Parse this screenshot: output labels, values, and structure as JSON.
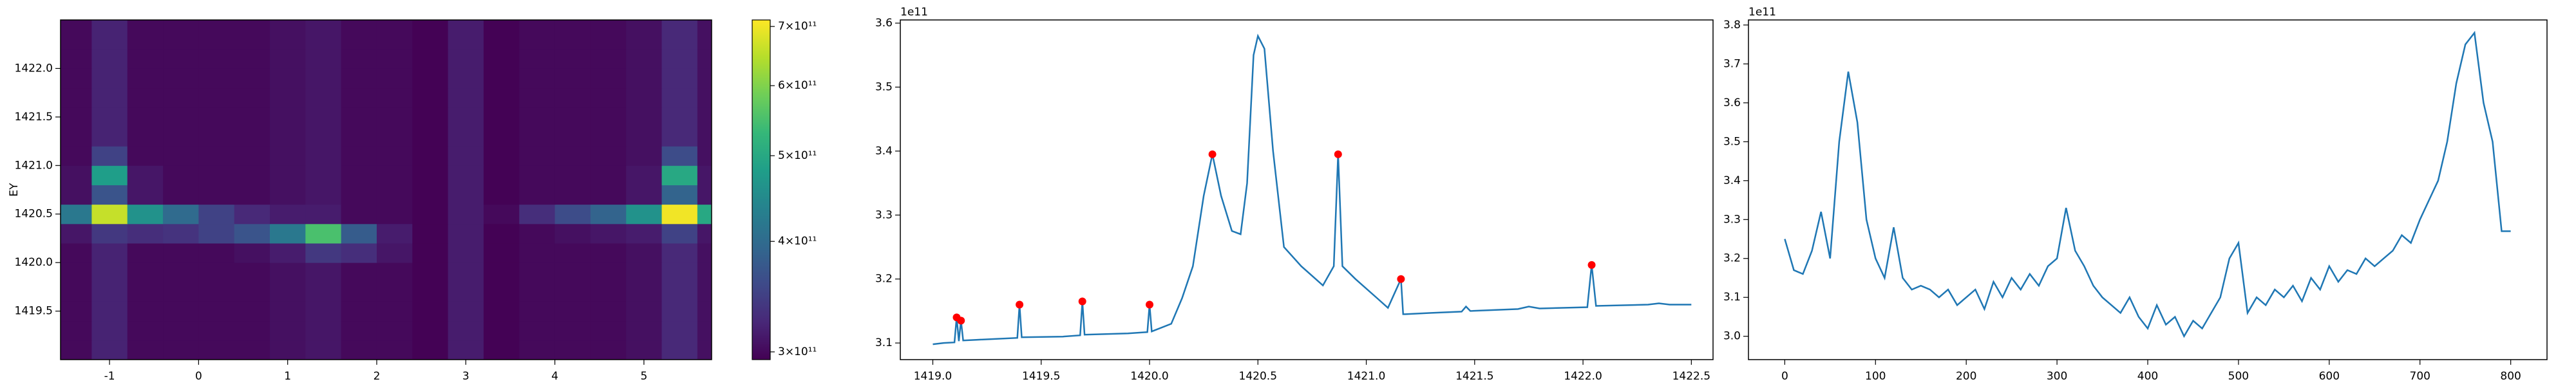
{
  "chart_data": [
    {
      "type": "heatmap",
      "ylabel": "EY",
      "x": [
        -1.4,
        -1.0,
        -0.6,
        -0.2,
        0.2,
        0.6,
        1.0,
        1.4,
        1.8,
        2.2,
        2.6,
        3.0,
        3.4,
        3.8,
        4.2,
        4.6,
        5.0,
        5.4,
        5.8
      ],
      "y": [
        1419.1,
        1419.3,
        1419.5,
        1419.7,
        1419.9,
        1420.1,
        1420.3,
        1420.5,
        1420.7,
        1420.9,
        1421.1,
        1421.3,
        1421.5,
        1421.7,
        1421.9,
        1422.1,
        1422.3,
        1422.5
      ],
      "z": [
        [
          300000000000.0,
          320000000000.0,
          300000000000.0,
          300000000000.0,
          300000000000.0,
          300000000000.0,
          305000000000.0,
          310000000000.0,
          300000000000.0,
          300000000000.0,
          295000000000.0,
          315000000000.0,
          295000000000.0,
          300000000000.0,
          300000000000.0,
          300000000000.0,
          305000000000.0,
          325000000000.0,
          305000000000.0
        ],
        [
          300000000000.0,
          320000000000.0,
          300000000000.0,
          300000000000.0,
          300000000000.0,
          300000000000.0,
          305000000000.0,
          310000000000.0,
          300000000000.0,
          300000000000.0,
          295000000000.0,
          315000000000.0,
          295000000000.0,
          300000000000.0,
          300000000000.0,
          300000000000.0,
          305000000000.0,
          325000000000.0,
          305000000000.0
        ],
        [
          300000000000.0,
          320000000000.0,
          300000000000.0,
          300000000000.0,
          300000000000.0,
          300000000000.0,
          305000000000.0,
          310000000000.0,
          300000000000.0,
          300000000000.0,
          295000000000.0,
          315000000000.0,
          295000000000.0,
          300000000000.0,
          300000000000.0,
          300000000000.0,
          305000000000.0,
          325000000000.0,
          305000000000.0
        ],
        [
          300000000000.0,
          320000000000.0,
          300000000000.0,
          300000000000.0,
          300000000000.0,
          300000000000.0,
          305000000000.0,
          310000000000.0,
          300000000000.0,
          300000000000.0,
          295000000000.0,
          315000000000.0,
          295000000000.0,
          300000000000.0,
          300000000000.0,
          300000000000.0,
          305000000000.0,
          325000000000.0,
          305000000000.0
        ],
        [
          300000000000.0,
          320000000000.0,
          300000000000.0,
          300000000000.0,
          300000000000.0,
          300000000000.0,
          305000000000.0,
          310000000000.0,
          300000000000.0,
          300000000000.0,
          295000000000.0,
          315000000000.0,
          295000000000.0,
          300000000000.0,
          300000000000.0,
          300000000000.0,
          305000000000.0,
          325000000000.0,
          305000000000.0
        ],
        [
          300000000000.0,
          320000000000.0,
          300000000000.0,
          300000000000.0,
          300000000000.0,
          305000000000.0,
          315000000000.0,
          340000000000.0,
          330000000000.0,
          310000000000.0,
          295000000000.0,
          315000000000.0,
          295000000000.0,
          300000000000.0,
          300000000000.0,
          300000000000.0,
          305000000000.0,
          325000000000.0,
          305000000000.0
        ],
        [
          310000000000.0,
          340000000000.0,
          330000000000.0,
          335000000000.0,
          350000000000.0,
          370000000000.0,
          420000000000.0,
          550000000000.0,
          380000000000.0,
          315000000000.0,
          295000000000.0,
          315000000000.0,
          295000000000.0,
          300000000000.0,
          305000000000.0,
          310000000000.0,
          315000000000.0,
          350000000000.0,
          310000000000.0
        ],
        [
          420000000000.0,
          660000000000.0,
          460000000000.0,
          400000000000.0,
          350000000000.0,
          325000000000.0,
          315000000000.0,
          315000000000.0,
          300000000000.0,
          300000000000.0,
          295000000000.0,
          315000000000.0,
          300000000000.0,
          330000000000.0,
          360000000000.0,
          390000000000.0,
          460000000000.0,
          700000000000.0,
          500000000000.0
        ],
        [
          305000000000.0,
          370000000000.0,
          310000000000.0,
          300000000000.0,
          300000000000.0,
          300000000000.0,
          305000000000.0,
          310000000000.0,
          300000000000.0,
          300000000000.0,
          295000000000.0,
          315000000000.0,
          295000000000.0,
          300000000000.0,
          300000000000.0,
          300000000000.0,
          310000000000.0,
          390000000000.0,
          310000000000.0
        ],
        [
          305000000000.0,
          480000000000.0,
          310000000000.0,
          300000000000.0,
          300000000000.0,
          300000000000.0,
          305000000000.0,
          310000000000.0,
          300000000000.0,
          300000000000.0,
          295000000000.0,
          315000000000.0,
          295000000000.0,
          300000000000.0,
          300000000000.0,
          300000000000.0,
          310000000000.0,
          500000000000.0,
          310000000000.0
        ],
        [
          300000000000.0,
          350000000000.0,
          300000000000.0,
          300000000000.0,
          300000000000.0,
          300000000000.0,
          305000000000.0,
          310000000000.0,
          300000000000.0,
          300000000000.0,
          295000000000.0,
          315000000000.0,
          295000000000.0,
          300000000000.0,
          300000000000.0,
          300000000000.0,
          305000000000.0,
          360000000000.0,
          305000000000.0
        ],
        [
          300000000000.0,
          320000000000.0,
          300000000000.0,
          300000000000.0,
          300000000000.0,
          300000000000.0,
          305000000000.0,
          310000000000.0,
          300000000000.0,
          300000000000.0,
          295000000000.0,
          315000000000.0,
          295000000000.0,
          300000000000.0,
          300000000000.0,
          300000000000.0,
          305000000000.0,
          325000000000.0,
          305000000000.0
        ],
        [
          300000000000.0,
          320000000000.0,
          300000000000.0,
          300000000000.0,
          300000000000.0,
          300000000000.0,
          305000000000.0,
          310000000000.0,
          300000000000.0,
          300000000000.0,
          295000000000.0,
          315000000000.0,
          295000000000.0,
          300000000000.0,
          300000000000.0,
          300000000000.0,
          305000000000.0,
          325000000000.0,
          305000000000.0
        ],
        [
          300000000000.0,
          320000000000.0,
          300000000000.0,
          300000000000.0,
          300000000000.0,
          300000000000.0,
          305000000000.0,
          310000000000.0,
          300000000000.0,
          300000000000.0,
          295000000000.0,
          315000000000.0,
          295000000000.0,
          300000000000.0,
          300000000000.0,
          300000000000.0,
          305000000000.0,
          325000000000.0,
          305000000000.0
        ],
        [
          300000000000.0,
          320000000000.0,
          300000000000.0,
          300000000000.0,
          300000000000.0,
          300000000000.0,
          305000000000.0,
          310000000000.0,
          300000000000.0,
          300000000000.0,
          295000000000.0,
          315000000000.0,
          295000000000.0,
          300000000000.0,
          300000000000.0,
          300000000000.0,
          305000000000.0,
          325000000000.0,
          305000000000.0
        ],
        [
          300000000000.0,
          320000000000.0,
          300000000000.0,
          300000000000.0,
          300000000000.0,
          300000000000.0,
          305000000000.0,
          310000000000.0,
          300000000000.0,
          300000000000.0,
          295000000000.0,
          315000000000.0,
          295000000000.0,
          300000000000.0,
          300000000000.0,
          300000000000.0,
          305000000000.0,
          325000000000.0,
          305000000000.0
        ],
        [
          300000000000.0,
          320000000000.0,
          300000000000.0,
          300000000000.0,
          300000000000.0,
          300000000000.0,
          305000000000.0,
          310000000000.0,
          300000000000.0,
          300000000000.0,
          295000000000.0,
          315000000000.0,
          295000000000.0,
          300000000000.0,
          300000000000.0,
          300000000000.0,
          305000000000.0,
          325000000000.0,
          305000000000.0
        ],
        [
          300000000000.0,
          320000000000.0,
          300000000000.0,
          300000000000.0,
          300000000000.0,
          300000000000.0,
          305000000000.0,
          310000000000.0,
          300000000000.0,
          300000000000.0,
          295000000000.0,
          315000000000.0,
          295000000000.0,
          300000000000.0,
          300000000000.0,
          300000000000.0,
          305000000000.0,
          325000000000.0,
          305000000000.0
        ]
      ],
      "xlim": [
        -1.55,
        5.76
      ],
      "ylim": [
        1419.0,
        1422.5
      ],
      "xticks": [
        -1,
        0,
        1,
        2,
        3,
        4,
        5
      ],
      "yticks": [
        1419.5,
        {
          "value": 1420,
          "label": "1420.0"
        },
        1420.5,
        {
          "value": 1421,
          "label": "1421.0"
        },
        1421.5,
        {
          "value": 1422,
          "label": "1422.0"
        }
      ],
      "colorbar": {
        "colormap": "viridis",
        "log": true,
        "lim": [
          294000000000.0,
          712000000000.0
        ],
        "ticks": [
          {
            "value": 300000000000.0,
            "label": "3×10¹¹"
          },
          {
            "value": 400000000000.0,
            "label": "4×10¹¹"
          },
          {
            "value": 500000000000.0,
            "label": "5×10¹¹"
          },
          {
            "value": 600000000000.0,
            "label": "6×10¹¹"
          },
          {
            "value": 700000000000.0,
            "label": "7×10¹¹"
          }
        ]
      }
    },
    {
      "type": "line",
      "offset_label": "1e11",
      "color": "#1f77b4",
      "x": [
        1419.0,
        1419.05,
        1419.1,
        1419.11,
        1419.12,
        1419.13,
        1419.14,
        1419.2,
        1419.39,
        1419.4,
        1419.41,
        1419.6,
        1419.68,
        1419.69,
        1419.7,
        1419.9,
        1419.99,
        1420.0,
        1420.01,
        1420.1,
        1420.15,
        1420.2,
        1420.25,
        1420.29,
        1420.33,
        1420.38,
        1420.42,
        1420.45,
        1420.48,
        1420.5,
        1420.53,
        1420.57,
        1420.62,
        1420.7,
        1420.8,
        1420.85,
        1420.87,
        1420.89,
        1420.95,
        1421.05,
        1421.1,
        1421.16,
        1421.17,
        1421.18,
        1421.3,
        1421.44,
        1421.46,
        1421.48,
        1421.7,
        1421.75,
        1421.8,
        1422.02,
        1422.04,
        1422.06,
        1422.3,
        1422.35,
        1422.4,
        1422.5
      ],
      "y": [
        3.098,
        3.1,
        3.101,
        3.14,
        3.103,
        3.135,
        3.104,
        3.105,
        3.108,
        3.16,
        3.109,
        3.11,
        3.112,
        3.165,
        3.113,
        3.115,
        3.117,
        3.16,
        3.118,
        3.13,
        3.17,
        3.22,
        3.33,
        3.395,
        3.33,
        3.275,
        3.27,
        3.35,
        3.55,
        3.58,
        3.56,
        3.4,
        3.25,
        3.22,
        3.19,
        3.22,
        3.395,
        3.22,
        3.2,
        3.17,
        3.155,
        3.2,
        3.145,
        3.145,
        3.147,
        3.149,
        3.157,
        3.15,
        3.153,
        3.157,
        3.154,
        3.156,
        3.222,
        3.158,
        3.16,
        3.162,
        3.16,
        3.16
      ],
      "peaks": {
        "color": "#ff0000",
        "x": [
          1419.11,
          1419.13,
          1419.4,
          1419.69,
          1420.0,
          1420.29,
          1420.87,
          1421.16,
          1422.04
        ],
        "y": [
          3.14,
          3.135,
          3.16,
          3.165,
          3.16,
          3.395,
          3.395,
          3.2,
          3.222
        ]
      },
      "xlim": [
        1418.85,
        1422.6
      ],
      "ylim": [
        3.074,
        3.605
      ],
      "xticks": [
        {
          "value": 1419,
          "label": "1419.0"
        },
        1419.5,
        {
          "value": 1420,
          "label": "1420.0"
        },
        1420.5,
        {
          "value": 1421,
          "label": "1421.0"
        },
        1421.5,
        {
          "value": 1422,
          "label": "1422.0"
        },
        1422.5
      ],
      "yticks": [
        3.1,
        3.2,
        3.3,
        3.4,
        3.5,
        3.6
      ]
    },
    {
      "type": "line",
      "offset_label": "1e11",
      "color": "#1f77b4",
      "x": [
        0,
        10,
        20,
        30,
        40,
        50,
        60,
        70,
        80,
        90,
        100,
        110,
        120,
        130,
        140,
        150,
        160,
        170,
        180,
        190,
        200,
        210,
        220,
        230,
        240,
        250,
        260,
        270,
        280,
        290,
        300,
        310,
        320,
        330,
        340,
        350,
        360,
        370,
        380,
        390,
        400,
        410,
        420,
        430,
        440,
        450,
        460,
        470,
        480,
        490,
        500,
        510,
        520,
        530,
        540,
        550,
        560,
        570,
        580,
        590,
        600,
        610,
        620,
        630,
        640,
        650,
        660,
        670,
        680,
        690,
        700,
        710,
        720,
        730,
        740,
        750,
        760,
        770,
        780,
        790,
        800
      ],
      "y": [
        3.25,
        3.17,
        3.16,
        3.22,
        3.32,
        3.2,
        3.5,
        3.68,
        3.55,
        3.3,
        3.2,
        3.15,
        3.28,
        3.15,
        3.12,
        3.13,
        3.12,
        3.1,
        3.12,
        3.08,
        3.1,
        3.12,
        3.07,
        3.14,
        3.1,
        3.15,
        3.12,
        3.16,
        3.13,
        3.18,
        3.2,
        3.33,
        3.22,
        3.18,
        3.13,
        3.1,
        3.08,
        3.06,
        3.1,
        3.05,
        3.02,
        3.08,
        3.03,
        3.05,
        3.0,
        3.04,
        3.02,
        3.06,
        3.1,
        3.2,
        3.24,
        3.06,
        3.1,
        3.08,
        3.12,
        3.1,
        3.13,
        3.09,
        3.15,
        3.12,
        3.18,
        3.14,
        3.17,
        3.16,
        3.2,
        3.18,
        3.2,
        3.22,
        3.26,
        3.24,
        3.3,
        3.35,
        3.4,
        3.5,
        3.65,
        3.75,
        3.78,
        3.6,
        3.5,
        3.27,
        3.27
      ],
      "xlim": [
        -40,
        840
      ],
      "ylim": [
        2.94,
        3.813
      ],
      "xticks": [
        0,
        100,
        200,
        300,
        400,
        500,
        600,
        700,
        800
      ],
      "yticks": [
        {
          "value": 3,
          "label": "3.0"
        },
        3.1,
        3.2,
        3.3,
        3.4,
        3.5,
        3.6,
        3.7,
        3.8
      ]
    }
  ]
}
